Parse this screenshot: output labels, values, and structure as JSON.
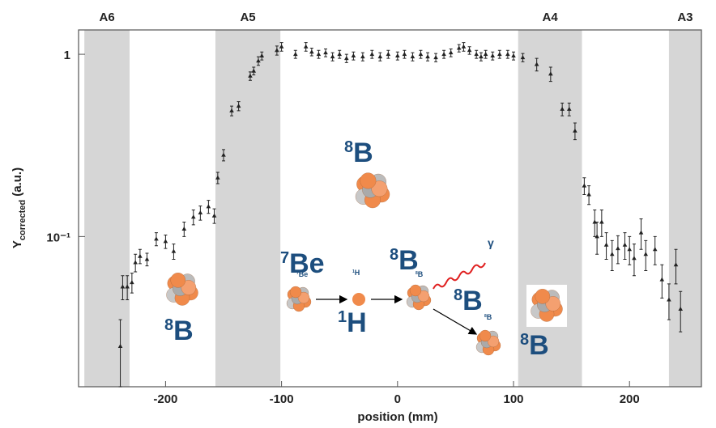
{
  "chart_data": {
    "type": "scatter",
    "xlabel": "position (mm)",
    "ylabel": {
      "main": "Y",
      "sub": "corrected",
      "rest": " (a.u.)"
    },
    "yscale": "log",
    "xlim": [
      -275,
      262
    ],
    "ylim": [
      0.015,
      1.36
    ],
    "xticks": [
      -200,
      -100,
      0,
      100,
      200
    ],
    "yticks": [
      1,
      {
        "value": 0.1,
        "label": "10⁻¹"
      }
    ],
    "color": "#222222",
    "region_color": "#d6d6d6",
    "regions": [
      {
        "name": "A6",
        "x": [
          -270,
          -231
        ]
      },
      {
        "name": "A5",
        "x": [
          -157,
          -101
        ]
      },
      {
        "name": "A4",
        "x": [
          104,
          159
        ]
      },
      {
        "name": "A3",
        "x": [
          234,
          262
        ]
      }
    ],
    "x": [
      -239,
      -237,
      -233,
      -229,
      -226,
      -222,
      -216,
      -208,
      -200,
      -193,
      -184,
      -176,
      -170,
      -163,
      -158,
      -155,
      -150,
      -143,
      -137,
      -127,
      -124,
      -120,
      -117,
      -104,
      -100,
      -88,
      -79,
      -74,
      -68,
      -62,
      -56,
      -50,
      -44,
      -38,
      -30,
      -22,
      -15,
      -8,
      0,
      6,
      13,
      20,
      26,
      33,
      40,
      46,
      53,
      57,
      62,
      68,
      72,
      76,
      82,
      88,
      95,
      100,
      108,
      120,
      132,
      142,
      148,
      153,
      161,
      165,
      170,
      172,
      176,
      180,
      185,
      190,
      196,
      200,
      204,
      210,
      214,
      222,
      228,
      234,
      240,
      244
    ],
    "values": [
      0.025,
      0.053,
      0.053,
      0.056,
      0.072,
      0.078,
      0.075,
      0.097,
      0.094,
      0.083,
      0.11,
      0.128,
      0.135,
      0.146,
      0.13,
      0.21,
      0.28,
      0.49,
      0.52,
      0.76,
      0.81,
      0.92,
      0.98,
      1.05,
      1.1,
      1.0,
      1.1,
      1.03,
      1.0,
      1.02,
      0.97,
      1.0,
      0.95,
      0.98,
      0.97,
      1.0,
      0.97,
      1.0,
      0.98,
      1.0,
      0.97,
      1.0,
      0.97,
      0.96,
      1.0,
      1.02,
      1.08,
      1.1,
      1.05,
      1.0,
      0.97,
      1.0,
      0.98,
      1.0,
      1.0,
      0.98,
      0.96,
      0.88,
      0.78,
      0.5,
      0.5,
      0.38,
      0.19,
      0.17,
      0.12,
      0.1,
      0.12,
      0.09,
      0.08,
      0.086,
      0.09,
      0.085,
      0.076,
      0.105,
      0.08,
      0.085,
      0.058,
      0.045,
      0.07,
      0.04
    ],
    "errors": [
      0.01,
      0.008,
      0.008,
      0.007,
      0.008,
      0.007,
      0.006,
      0.008,
      0.008,
      0.008,
      0.01,
      0.012,
      0.012,
      0.012,
      0.012,
      0.015,
      0.02,
      0.03,
      0.03,
      0.04,
      0.04,
      0.05,
      0.05,
      0.06,
      0.06,
      0.05,
      0.06,
      0.05,
      0.05,
      0.05,
      0.05,
      0.05,
      0.05,
      0.05,
      0.05,
      0.05,
      0.05,
      0.05,
      0.05,
      0.05,
      0.05,
      0.05,
      0.05,
      0.05,
      0.05,
      0.05,
      0.05,
      0.06,
      0.05,
      0.05,
      0.05,
      0.05,
      0.05,
      0.05,
      0.05,
      0.05,
      0.05,
      0.07,
      0.07,
      0.04,
      0.04,
      0.04,
      0.02,
      0.02,
      0.02,
      0.02,
      0.02,
      0.015,
      0.015,
      0.015,
      0.015,
      0.015,
      0.015,
      0.02,
      0.015,
      0.015,
      0.012,
      0.01,
      0.015,
      0.01
    ],
    "annotations": [
      {
        "mass": "8",
        "symbol": "B"
      },
      {
        "mass": "8",
        "symbol": "B"
      },
      {
        "mass": "7",
        "symbol": "Be"
      },
      {
        "mass": "7",
        "symbol": "Be"
      },
      {
        "mass": "1",
        "symbol": "H"
      },
      {
        "mass": "1",
        "symbol": "H"
      },
      {
        "mass": "8",
        "symbol": "B"
      },
      {
        "mass": "8",
        "symbol": "B"
      },
      {
        "mass": "",
        "symbol": "γ"
      },
      {
        "mass": "8",
        "symbol": "B"
      },
      {
        "mass": "8",
        "symbol": "B"
      },
      {
        "mass": "8",
        "symbol": "B"
      }
    ]
  }
}
